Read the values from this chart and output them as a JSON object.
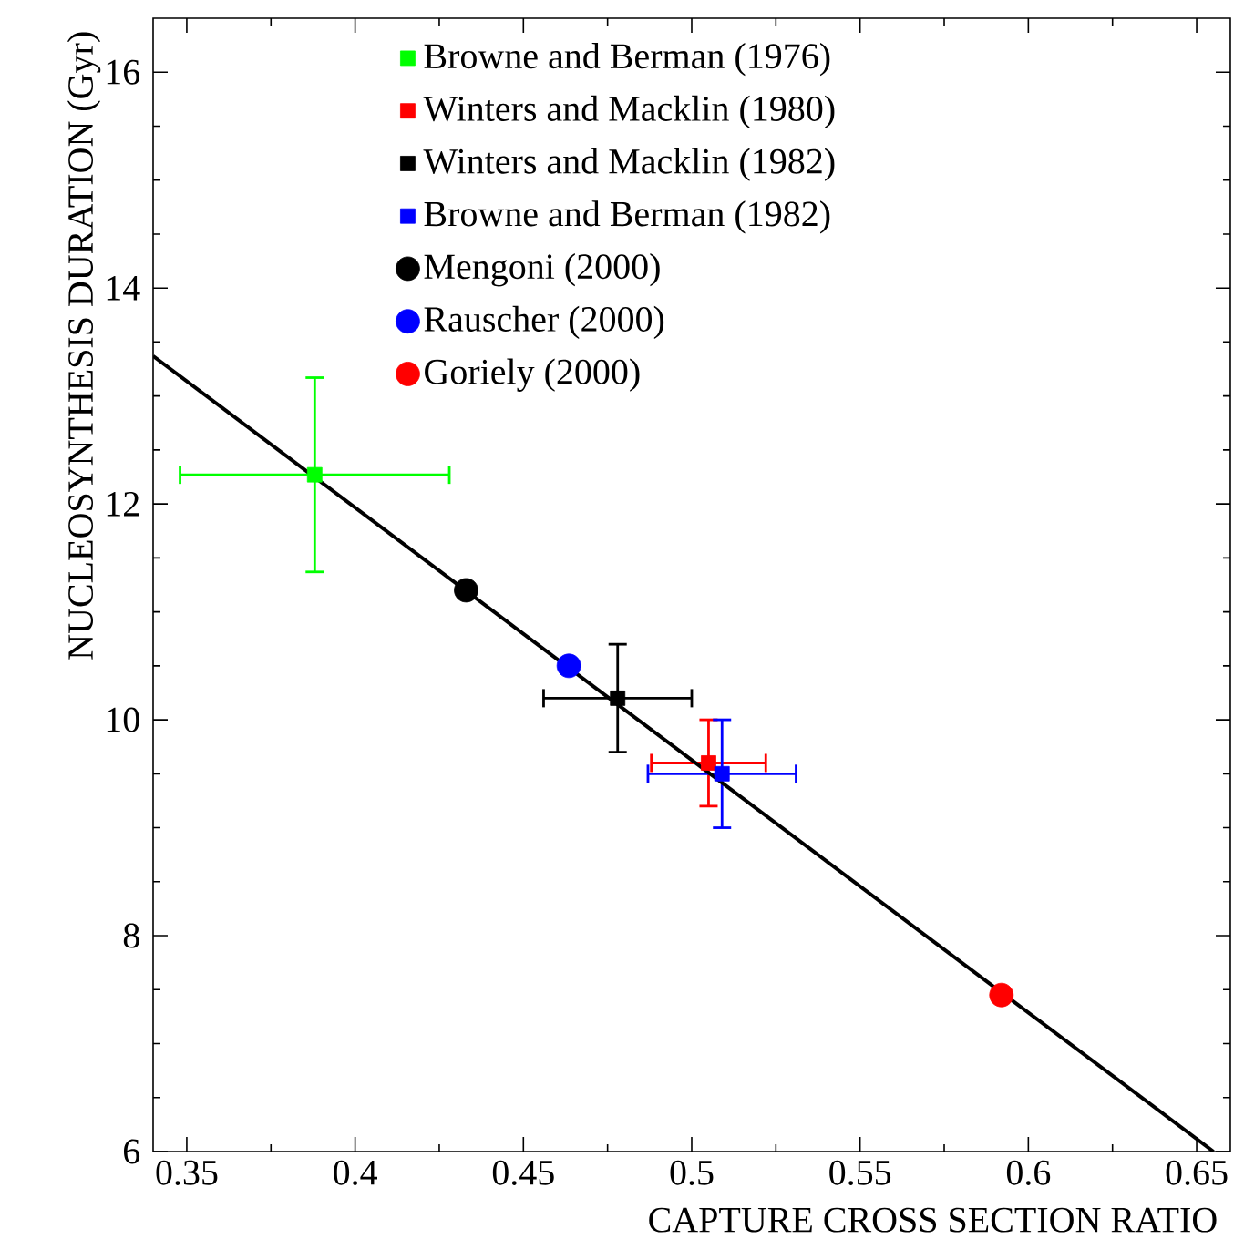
{
  "chart_data": {
    "type": "scatter",
    "xlabel": "CAPTURE CROSS SECTION RATIO",
    "ylabel": "NUCLEOSYNTHESIS DURATION (Gyr)",
    "xlim": [
      0.34,
      0.66
    ],
    "ylim": [
      6,
      16.5
    ],
    "xticks": [
      0.35,
      0.4,
      0.45,
      0.5,
      0.55,
      0.6,
      0.65
    ],
    "yticks": [
      6,
      8,
      10,
      12,
      14,
      16
    ],
    "legend": "top",
    "grid": false,
    "series": [
      {
        "name": "Browne and Berman (1976)",
        "color": "#00ff00",
        "marker": "square",
        "x": [
          0.388
        ],
        "values": [
          12.27
        ],
        "errors": [
          0.9
        ],
        "xerrors": [
          0.04
        ]
      },
      {
        "name": "Winters and Macklin (1980)",
        "color": "#ff0000",
        "marker": "square",
        "x": [
          0.505
        ],
        "values": [
          9.6
        ],
        "errors": [
          0.4
        ],
        "xerrors": [
          0.017
        ]
      },
      {
        "name": "Winters and Macklin (1982)",
        "color": "#000000",
        "marker": "square",
        "x": [
          0.478
        ],
        "values": [
          10.2
        ],
        "errors": [
          0.5
        ],
        "xerrors": [
          0.022
        ]
      },
      {
        "name": "Browne and Berman (1982)",
        "color": "#0000ff",
        "marker": "square",
        "x": [
          0.509
        ],
        "values": [
          9.5
        ],
        "errors": [
          0.5
        ],
        "xerrors": [
          0.022
        ]
      },
      {
        "name": "Mengoni (2000)",
        "color": "#000000",
        "marker": "circle",
        "x": [
          0.433
        ],
        "values": [
          11.2
        ]
      },
      {
        "name": "Rauscher (2000)",
        "color": "#0000ff",
        "marker": "circle",
        "x": [
          0.4635
        ],
        "values": [
          10.5
        ]
      },
      {
        "name": "Goriely (2000)",
        "color": "#ff0000",
        "marker": "circle",
        "x": [
          0.592
        ],
        "values": [
          7.45
        ]
      },
      {
        "type": "line",
        "color": "#000000",
        "marker": "none",
        "line_style": "solid",
        "x": [
          0.34,
          0.655
        ],
        "values": [
          13.37,
          6.0
        ]
      }
    ]
  }
}
